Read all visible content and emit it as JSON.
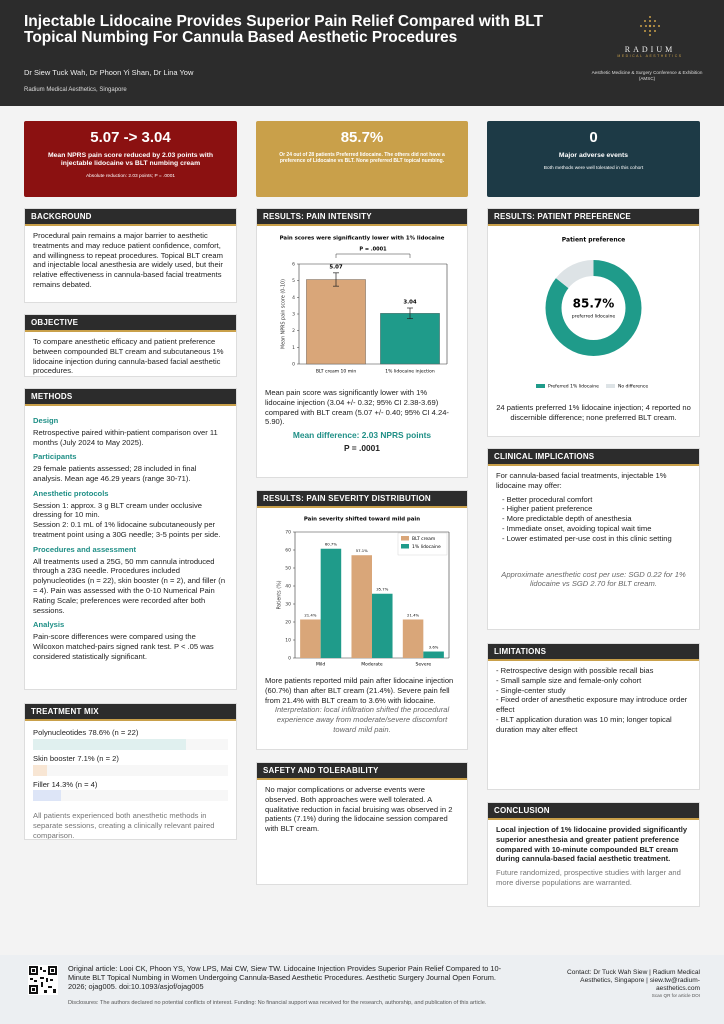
{
  "header": {
    "title": "Injectable Lidocaine Provides Superior Pain Relief Compared with BLT Topical Numbing For Cannula Based Aesthetic Procedures",
    "authors": "Dr Siew Tuck Wah, Dr Phoon Yi Shan, Dr Lina Yow",
    "affiliation": "Radium Medical Aesthetics, Singapore",
    "logo_name": "RADIUM",
    "logo_sub": "MEDICAL AESTHETICS",
    "conference": "Aesthetic Medicine & Surgery Conference & Exhibition (AMSC)"
  },
  "stats": [
    {
      "value": "5.07 -> 3.04",
      "label": "Mean NPRS pain score reduced  by 2.03 points with injectable lidocaine vs BLT numbing cream",
      "note": "Absolute reduction: 2.03 points; P = .0001"
    },
    {
      "value": "85.7%",
      "label": "Or 24 out of 28 patients Preferred lidocaine. The others did not have a preference of Lidocaine vs BLT. None preferred BLT topical numbing."
    },
    {
      "value": "0",
      "label": "Major adverse events",
      "note": "Both methods were well tolerated in this cohort"
    }
  ],
  "background": {
    "heading": "BACKGROUND",
    "text": "Procedural pain remains a major barrier to aesthetic treatments and may reduce patient confidence, comfort, and willingness to repeat procedures. Topical BLT cream and injectable local anesthesia are widely used, but their relative effectiveness in cannula-based facial treatments remains debated."
  },
  "objective": {
    "heading": "OBJECTIVE",
    "text": "To compare anesthetic efficacy and patient preference between compounded BLT cream and subcutaneous 1% lidocaine injection during cannula-based facial aesthetic procedures."
  },
  "methods": {
    "heading": "METHODS",
    "sections": [
      {
        "heading": "Design",
        "paragraphs": [
          "Retrospective paired within-patient comparison over 11 months (July 2024 to May 2025)."
        ]
      },
      {
        "heading": "Participants",
        "paragraphs": [
          "29 female patients assessed; 28 included in final analysis. Mean age 46.29 years (range 30-71)."
        ]
      },
      {
        "heading": "Anesthetic protocols",
        "paragraphs": [
          "Session 1: approx. 3 g BLT cream under occlusive dressing for 10 min.",
          "Session 2: 0.1 mL of 1% lidocaine subcutaneously per treatment point using a 30G needle; 3-5 points per side."
        ]
      },
      {
        "heading": "Procedures and assessment",
        "paragraphs": [
          "All treatments used a 25G, 50 mm cannula introduced through a 23G needle. Procedures included polynucleotides (n = 22), skin booster (n = 2), and filler (n = 4). Pain was assessed with the 0-10 Numerical Pain Rating Scale; preferences were recorded after both sessions."
        ]
      },
      {
        "heading": "Analysis",
        "paragraphs": [
          "Pain-score differences were compared using the Wilcoxon matched-pairs signed rank test. P < .05 was considered statistically significant."
        ]
      }
    ]
  },
  "treatment_mix": {
    "heading": "TREATMENT MIX",
    "note": "All patients experienced both anesthetic methods in separate sessions, creating a clinically relevant paired comparison."
  },
  "pain_intensity": {
    "heading": "RESULTS: PAIN INTENSITY",
    "text": "Mean pain score was significantly lower with 1% lidocaine injection (3.04 +/- 0.32; 95% CI 2.38-3.69) compared with BLT cream (5.07 +/- 0.40; 95% CI 4.24-5.90).",
    "mean_difference": "Mean difference: 2.03 NPRS points",
    "p_value": "P = .0001"
  },
  "severity": {
    "heading": "RESULTS: PAIN SEVERITY DISTRIBUTION",
    "text": "More patients reported mild pain after lidocaine injection (60.7%) than after BLT cream (21.4%). Severe pain fell from 21.4% with BLT cream to 3.6% with lidocaine.",
    "interpretation": "Interpretation: local infiltration shifted the procedural experience away from moderate/severe discomfort toward mild pain."
  },
  "safety": {
    "heading": "SAFETY AND TOLERABILITY",
    "text": "No major complications or adverse events were observed. Both approaches were well tolerated. A qualitative reduction in facial bruising was observed in 2 patients (7.1%) during the lidocaine session compared with BLT cream."
  },
  "preference": {
    "heading": "RESULTS: PATIENT PREFERENCE",
    "text": "24 patients preferred 1% lidocaine injection; 4 reported no discernible difference; none preferred BLT cream."
  },
  "clinical": {
    "heading": "CLINICAL IMPLICATIONS",
    "intro": "For cannula-based facial treatments, injectable 1% lidocaine may offer:",
    "items": [
      "- Better procedural comfort",
      "- Higher patient preference",
      "- More predictable depth of anesthesia",
      "- Immediate onset, avoiding topical wait time",
      "- Lower estimated per-use cost in this clinic setting"
    ],
    "cost": "Approximate anesthetic cost per use: SGD 0.22 for 1% lidocaine vs SGD 2.70 for BLT cream."
  },
  "limitations": {
    "heading": "LIMITATIONS",
    "items": [
      "- Retrospective design with possible recall bias",
      "- Small sample size and female-only cohort",
      "- Single-center study",
      "- Fixed order of anesthetic exposure may introduce order effect",
      "- BLT application duration was 10 min; longer topical duration may alter effect"
    ]
  },
  "conclusion": {
    "heading": "CONCLUSION",
    "bold": "Local injection of 1% lidocaine provided significantly superior anesthesia and greater patient preference compared with 10-minute compounded BLT cream during cannula-based facial aesthetic treatment.",
    "text": "Future randomized, prospective studies with larger and more diverse populations are warranted."
  },
  "footer": {
    "citation": "Original article: Looi CK, Phoon YS, Yow LPS, Mai CW, Siew TW. Lidocaine Injection Provides Superior Pain Relief Compared to 10-Minute BLT Topical Numbing in Women Undergoing Cannula-Based Aesthetic Procedures. Aesthetic Surgery Journal Open Forum. 2026; ojag005. doi:10.1093/asjof/ojag005",
    "disclosures": "Disclosures: The authors declared no potential conflicts of interest. Funding: No financial support was received for the research, authorship, and publication of this article.",
    "contact": "Contact: Dr Tuck Wah Siew | Radium Medical Aesthetics, Singapore | siew.tw@radium-aesthetics.com",
    "qr_note": "Scan QR for article DOI"
  },
  "chart_data": [
    {
      "type": "bar",
      "title": "Pain scores were significantly lower with 1% lidocaine",
      "categories": [
        "BLT cream 10 min",
        "1% lidocaine injection"
      ],
      "values": [
        5.07,
        3.04
      ],
      "errors": [
        0.4,
        0.32
      ],
      "colors": [
        "#d9a679",
        "#1f9b8a"
      ],
      "ylabel": "Mean NPRS pain score (0-10)",
      "ylim": [
        0,
        6
      ],
      "yticks": [
        0,
        1,
        2,
        3,
        4,
        5,
        6
      ],
      "annotation": "P = .0001"
    },
    {
      "type": "grouped_bar",
      "title": "Pain severity shifted toward mild pain",
      "categories": [
        "Mild",
        "Moderate",
        "Severe"
      ],
      "series": [
        {
          "name": "BLT cream",
          "color": "#d9a679",
          "values": [
            21.4,
            57.1,
            21.4
          ],
          "value_labels": [
            "21.4%",
            "57.1%",
            "21.4%"
          ]
        },
        {
          "name": "1% lidocaine",
          "color": "#1f9b8a",
          "values": [
            60.7,
            35.7,
            3.6
          ],
          "value_labels": [
            "60.7%",
            "35.7%",
            "3.6%"
          ]
        }
      ],
      "ylabel": "Patients (%)",
      "ylim": [
        0,
        70
      ],
      "yticks": [
        0,
        10,
        20,
        30,
        40,
        50,
        60,
        70
      ],
      "legend": "upper right"
    },
    {
      "type": "donut",
      "title": "Patient preference",
      "categories": [
        "Preferred 1% lidocaine",
        "No difference"
      ],
      "values": [
        85.7,
        14.3
      ],
      "colors": [
        "#1f9b8a",
        "#dde3e6"
      ],
      "center_label": "85.7%",
      "center_note": "preferred lidocaine",
      "legend": "bottom"
    },
    {
      "type": "hbar",
      "categories": [
        "Polynucleotides",
        "Skin booster",
        "Filler"
      ],
      "values": [
        78.6,
        7.1,
        14.3
      ],
      "value_labels": [
        "78.6% (n = 22)",
        "7.1% (n = 2)",
        "14.3% (n = 4)"
      ],
      "colors": [
        "#e0f0ef",
        "#f8e6d4",
        "#dde5f7"
      ],
      "xlim": [
        0,
        100
      ]
    }
  ]
}
